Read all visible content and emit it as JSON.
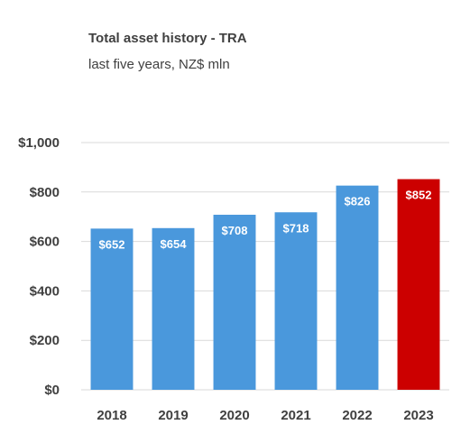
{
  "chart_data": {
    "type": "bar",
    "title": "Total asset history - TRA",
    "subtitle": "last five years, NZ$ mln",
    "categories": [
      "2018",
      "2019",
      "2020",
      "2021",
      "2022",
      "2023"
    ],
    "values": [
      652,
      654,
      708,
      718,
      826,
      852
    ],
    "data_labels": [
      "$652",
      "$654",
      "$708",
      "$718",
      "$826",
      "$852"
    ],
    "y_tick_values": [
      0,
      200,
      400,
      600,
      800,
      1000
    ],
    "y_tick_labels": [
      "$0",
      "$200",
      "$400",
      "$600",
      "$800",
      "$1,000"
    ],
    "ylim": [
      0,
      1000
    ],
    "xlabel": "",
    "ylabel": "",
    "grid": true,
    "legend": "none",
    "colors": {
      "default_bar": "#4a98dc",
      "highlight_bar": "#cc0000",
      "gridline": "#d9d9d9",
      "text": "#404040"
    },
    "highlight_index": 5
  }
}
